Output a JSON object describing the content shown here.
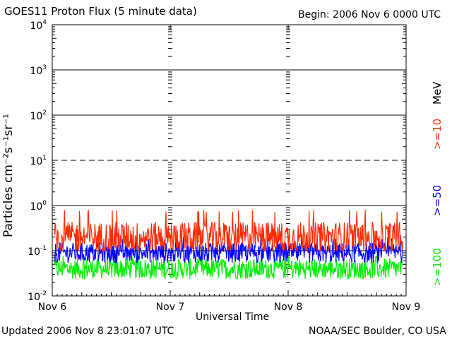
{
  "title": "GOES11 Proton Flux (5 minute data)",
  "begin_label": "Begin: 2006 Nov 6 0000 UTC",
  "updated_label": "Updated 2006 Nov  8 23:01:07 UTC",
  "credit_label": "NOAA/SEC Boulder, CO USA",
  "chart_data": {
    "type": "line",
    "title": "GOES11 Proton Flux (5 minute data)",
    "xlabel": "Universal Time",
    "ylabel": "Particles cm⁻²s⁻¹sr⁻¹",
    "x_ticks": [
      "Nov 6",
      "Nov 7",
      "Nov 8",
      "Nov 9"
    ],
    "y_ticks": [
      {
        "base": "10",
        "exp": "4",
        "value": 10000
      },
      {
        "base": "10",
        "exp": "3",
        "value": 1000
      },
      {
        "base": "10",
        "exp": "2",
        "value": 100
      },
      {
        "base": "10",
        "exp": "1",
        "value": 10
      },
      {
        "base": "10",
        "exp": "0",
        "value": 1
      },
      {
        "base": "10",
        "exp": "-1",
        "value": 0.1
      },
      {
        "base": "10",
        "exp": "-2",
        "value": 0.01
      }
    ],
    "ylim": [
      0.01,
      10000
    ],
    "y_scale": "log",
    "xlim_days": [
      0,
      3
    ],
    "grid": "horizontal lines at decades; dotted daily vertical markers",
    "legend_placement": "right, vertical text",
    "legend_unit": "MeV",
    "series": [
      {
        "name": ">=10",
        "color": "#ff2a00",
        "typical": 0.2,
        "range": [
          0.1,
          0.8
        ]
      },
      {
        "name": ">=50",
        "color": "#0000ff",
        "typical": 0.09,
        "range": [
          0.05,
          0.2
        ]
      },
      {
        "name": ">=100",
        "color": "#00ee00",
        "typical": 0.04,
        "range": [
          0.02,
          0.08
        ]
      }
    ]
  }
}
